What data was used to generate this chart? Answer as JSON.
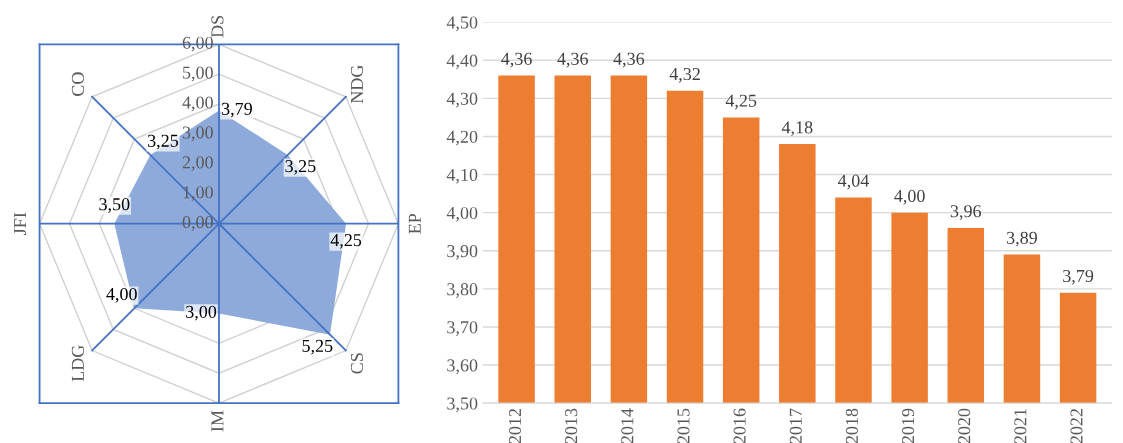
{
  "chart_data": [
    {
      "type": "radar",
      "categories": [
        "DS",
        "NDG",
        "EP",
        "CS",
        "IM",
        "LDG",
        "JFI",
        "CO"
      ],
      "series": [
        {
          "color": "#8eaadb",
          "values": [
            3.79,
            3.25,
            4.25,
            5.25,
            3.0,
            4.0,
            3.5,
            3.25
          ],
          "value_labels": [
            "3,79",
            "3,25",
            "4,25",
            "5,25",
            "3,00",
            "4,00",
            "3,50",
            "3,25"
          ]
        }
      ],
      "ylim": [
        0,
        6
      ],
      "yticks": [
        {
          "value": 0,
          "label": "0,00"
        },
        {
          "value": 1,
          "label": "1,00"
        },
        {
          "value": 2,
          "label": "2,00"
        },
        {
          "value": 3,
          "label": "3,00"
        },
        {
          "value": 4,
          "label": "4,00"
        },
        {
          "value": 5,
          "label": "5,00"
        },
        {
          "value": 6,
          "label": "6,00"
        }
      ],
      "grid": true
    },
    {
      "type": "bar",
      "categories": [
        "2012",
        "2013",
        "2014",
        "2015",
        "2016",
        "2017",
        "2018",
        "2019",
        "2020",
        "2021",
        "2022"
      ],
      "values": [
        4.36,
        4.36,
        4.36,
        4.32,
        4.25,
        4.18,
        4.04,
        4.0,
        3.96,
        3.89,
        3.79
      ],
      "color": "#ed7d31",
      "value_labels": [
        "4,36",
        "4,36",
        "4,36",
        "4,32",
        "4,25",
        "4,18",
        "4,04",
        "4,00",
        "3,96",
        "3,89",
        "3,79"
      ],
      "ylim": [
        3.5,
        4.5
      ],
      "yticks": [
        {
          "value": 3.5,
          "label": "3,50"
        },
        {
          "value": 3.6,
          "label": "3,60"
        },
        {
          "value": 3.7,
          "label": "3,70"
        },
        {
          "value": 3.8,
          "label": "3,80"
        },
        {
          "value": 3.9,
          "label": "3,90"
        },
        {
          "value": 4.0,
          "label": "4,00"
        },
        {
          "value": 4.1,
          "label": "4,10"
        },
        {
          "value": 4.2,
          "label": "4,20"
        },
        {
          "value": 4.3,
          "label": "4,30"
        },
        {
          "value": 4.4,
          "label": "4,40"
        },
        {
          "value": 4.5,
          "label": "4,50"
        }
      ],
      "grid": "y"
    }
  ]
}
